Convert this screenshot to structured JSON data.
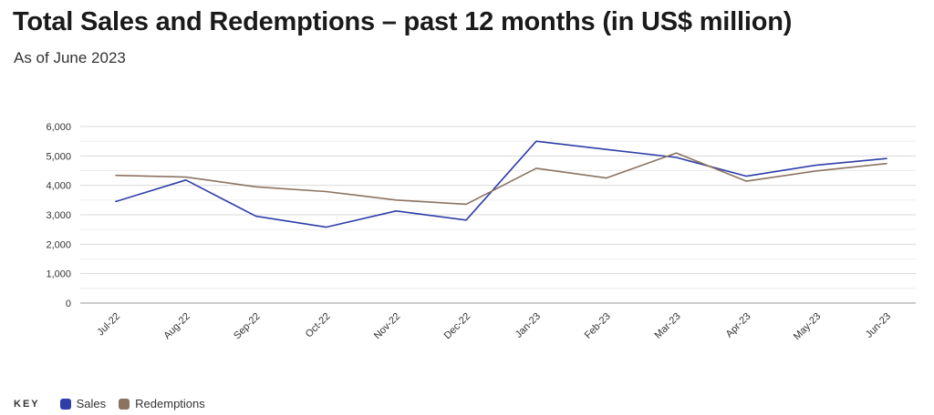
{
  "header": {
    "title": "Total Sales and Redemptions – past 12 months (in US$ million)",
    "subtitle": "As of June 2023"
  },
  "key": {
    "label": "KEY",
    "items": [
      {
        "label": "Sales",
        "color": "#2e3da8"
      },
      {
        "label": "Redemptions",
        "color": "#8c7260"
      }
    ]
  },
  "chart_data": {
    "type": "line",
    "categories": [
      "Jul-22",
      "Aug-22",
      "Sep-22",
      "Oct-22",
      "Nov-22",
      "Dec-22",
      "Jan-23",
      "Feb-23",
      "Mar-23",
      "Apr-23",
      "May-23",
      "Jun-23"
    ],
    "series": [
      {
        "name": "Sales",
        "color": "#2e3da8",
        "values": [
          3450,
          4180,
          2950,
          2580,
          3130,
          2820,
          5500,
          5220,
          4950,
          4310,
          4690,
          4910
        ]
      },
      {
        "name": "Redemptions",
        "color": "#8c7260",
        "values": [
          4340,
          4280,
          3950,
          3790,
          3500,
          3360,
          4580,
          4250,
          5100,
          4140,
          4490,
          4740
        ]
      }
    ],
    "yticks": [
      0,
      1000,
      2000,
      3000,
      4000,
      5000,
      6000
    ],
    "ytick_labels": [
      "0",
      "1,000",
      "2,000",
      "3,000",
      "4,000",
      "5,000",
      "6,000"
    ],
    "ylim": [
      0,
      6000
    ],
    "grid": true,
    "legend": "bottom-left"
  }
}
